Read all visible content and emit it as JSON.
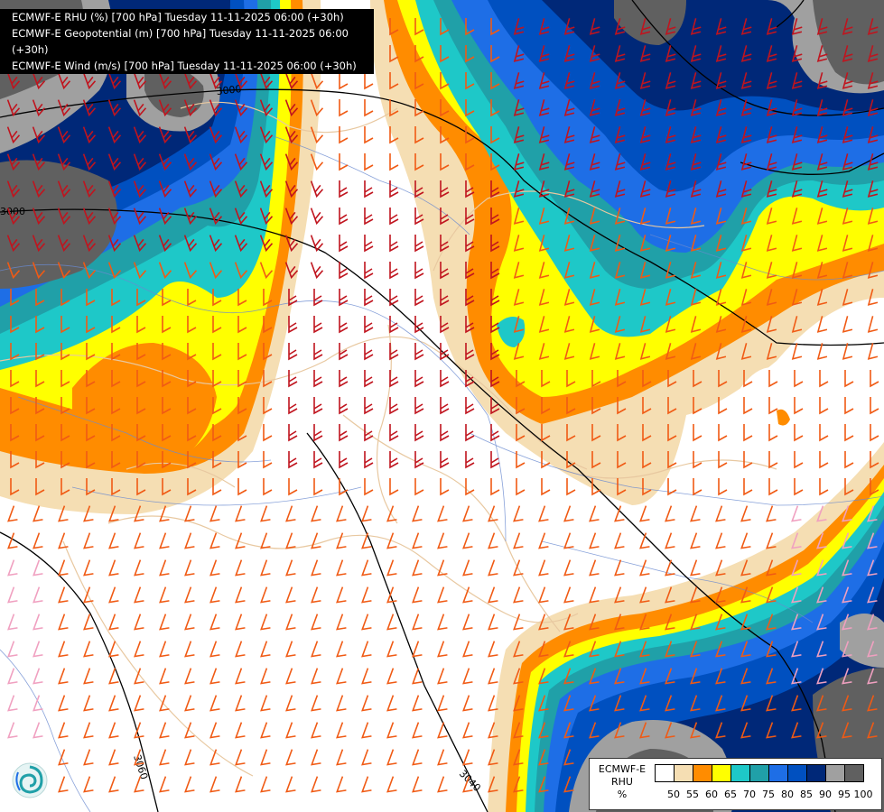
{
  "header": {
    "lines": [
      "ECMWF-E RHU (%) [700 hPa] Tuesday 11-11-2025 06:00 (+30h)",
      "ECMWF-E Geopotential (m) [700 hPa] Tuesday 11-11-2025 06:00 (+30h)",
      "ECMWF-E Wind (m/s) [700 hPa] Tuesday 11-11-2025 06:00 (+30h)"
    ]
  },
  "contours": {
    "labels": [
      "3000",
      "3000",
      "3060",
      "3040"
    ]
  },
  "legend": {
    "model": "ECMWF-E",
    "variable": "RHU",
    "unit": "%",
    "levels": [
      "50",
      "55",
      "60",
      "65",
      "70",
      "75",
      "80",
      "85",
      "90",
      "95",
      "100"
    ],
    "colors": [
      "#ffffff",
      "#f5deb3",
      "#ff8c00",
      "#ffff00",
      "#1ec8c8",
      "#20a0a8",
      "#1e6ee6",
      "#0050c0",
      "#002878",
      "#a0a0a0",
      "#606060"
    ]
  },
  "logo": {
    "icon": "swirl-logo-icon"
  }
}
